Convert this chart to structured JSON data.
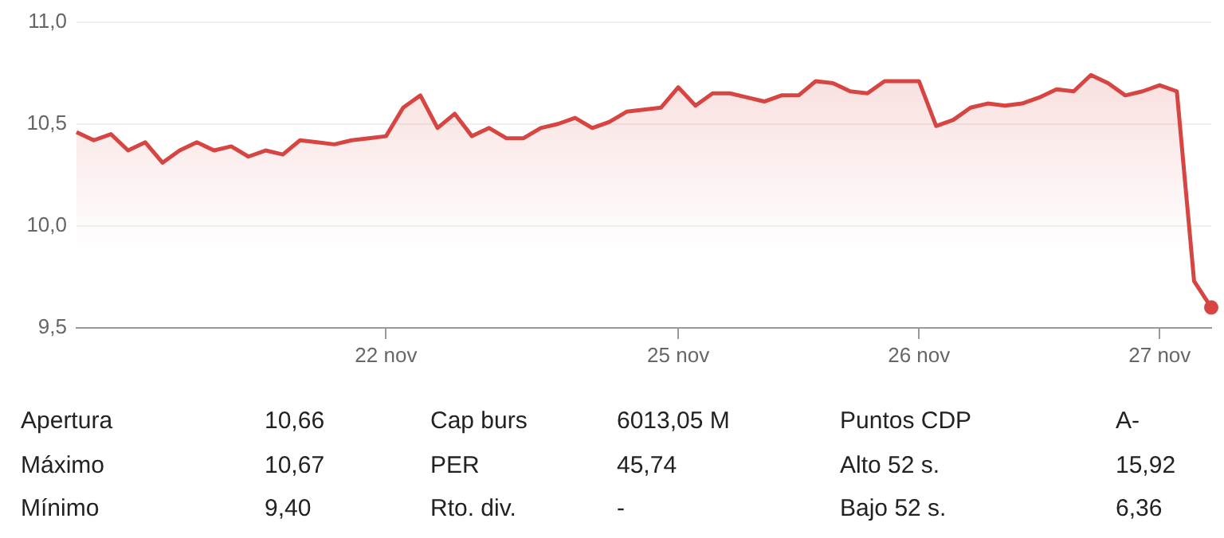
{
  "chart_data": {
    "type": "area",
    "color": "#d64541",
    "categories": [
      null,
      null,
      null,
      null,
      null,
      null,
      null,
      null,
      null,
      null,
      null,
      null,
      null,
      null,
      null,
      null,
      null,
      null,
      "22 nov",
      null,
      null,
      null,
      null,
      null,
      null,
      null,
      null,
      null,
      null,
      null,
      null,
      null,
      null,
      null,
      null,
      "25 nov",
      null,
      null,
      null,
      null,
      null,
      null,
      null,
      null,
      null,
      null,
      null,
      null,
      null,
      "26 nov",
      null,
      null,
      null,
      null,
      null,
      null,
      null,
      null,
      null,
      null,
      null,
      null,
      null,
      "27 nov",
      null,
      null,
      null
    ],
    "values": [
      10.46,
      10.42,
      10.45,
      10.37,
      10.41,
      10.31,
      10.37,
      10.41,
      10.37,
      10.39,
      10.34,
      10.37,
      10.35,
      10.42,
      10.41,
      10.4,
      10.42,
      10.43,
      10.44,
      10.58,
      10.64,
      10.48,
      10.55,
      10.44,
      10.48,
      10.43,
      10.43,
      10.48,
      10.5,
      10.53,
      10.48,
      10.51,
      10.56,
      10.57,
      10.58,
      10.68,
      10.59,
      10.65,
      10.65,
      10.63,
      10.61,
      10.64,
      10.64,
      10.71,
      10.7,
      10.66,
      10.65,
      10.71,
      10.71,
      10.71,
      10.49,
      10.52,
      10.58,
      10.6,
      10.59,
      10.6,
      10.63,
      10.67,
      10.66,
      10.74,
      10.7,
      10.64,
      10.66,
      10.69,
      10.66,
      9.73,
      9.6
    ],
    "ylim": [
      9.5,
      11.0
    ],
    "yticks": [
      {
        "value": 9.5,
        "label": "9,5"
      },
      {
        "value": 10.0,
        "label": "10,0"
      },
      {
        "value": 10.5,
        "label": "10,5"
      },
      {
        "value": 11.0,
        "label": "11,0"
      }
    ],
    "grid": "y",
    "annotations": [
      "Apertura",
      "10,66",
      "Cap burs",
      "6013,05 M",
      "Puntos CDP",
      "A-",
      "Máximo",
      "10,67",
      "PER",
      "45,74",
      "Alto 52 s.",
      "15,92",
      "Mínimo",
      "9,40",
      "Rto. div.",
      "-",
      "Bajo 52 s.",
      "6,36"
    ]
  }
}
